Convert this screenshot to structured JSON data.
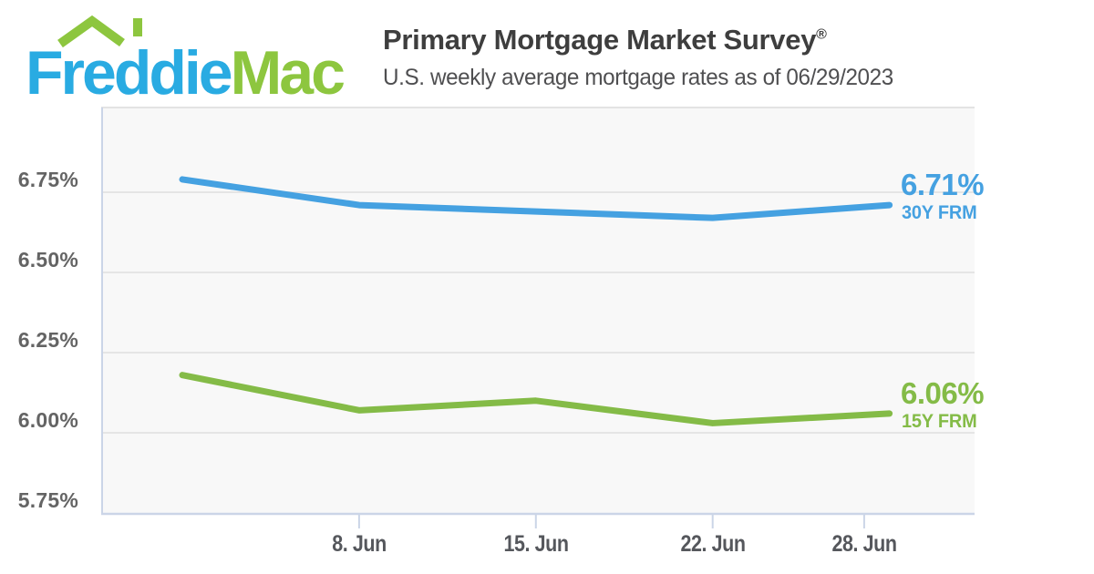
{
  "page": {
    "background": "#FFFFFF"
  },
  "logo": {
    "word1": "Freddie",
    "word2": "Mac",
    "word1_color": "#29ABE2",
    "word2_color": "#8DC63F",
    "roof_color": "#8DC63F",
    "roof_icon": "house-roof-with-chimney"
  },
  "header": {
    "title": "Primary Mortgage Market Survey",
    "registered_mark": "®",
    "subtitle": "U.S. weekly average mortgage rates as of 06/29/2023"
  },
  "chart_data": {
    "type": "line",
    "title": "U.S. weekly average mortgage rates as of 06/29/2023",
    "x_unit": "survey week (June 2023)",
    "x_days": [
      1,
      8,
      15,
      22,
      29
    ],
    "series": [
      {
        "name": "30Y FRM",
        "color": "#45A1E1",
        "values": [
          6.79,
          6.71,
          6.69,
          6.67,
          6.71
        ],
        "end_value_label": "6.71%"
      },
      {
        "name": "15Y FRM",
        "color": "#84BB47",
        "values": [
          6.18,
          6.07,
          6.1,
          6.03,
          6.06
        ],
        "end_value_label": "6.06%"
      }
    ],
    "y_ticks": [
      {
        "value": 6.75,
        "label": "6.75%"
      },
      {
        "value": 6.5,
        "label": "6.50%"
      },
      {
        "value": 6.25,
        "label": "6.25%"
      },
      {
        "value": 6.0,
        "label": "6.00%"
      },
      {
        "value": 5.75,
        "label": "5.75%"
      }
    ],
    "x_ticks": [
      {
        "day": 8,
        "label": "8. Jun"
      },
      {
        "day": 15,
        "label": "15. Jun"
      },
      {
        "day": 22,
        "label": "22. Jun"
      },
      {
        "day": 28,
        "label": "28. Jun"
      }
    ],
    "ylim": [
      5.75,
      7.01
    ],
    "grid": "horizontal",
    "legend_position": "end-of-line-labels",
    "plot_bg": "#F8F8F8",
    "grid_color": "#E5E5E5",
    "top_border_color": "#E3E3E3",
    "axis_color": "#CBD5E7",
    "y_label_color": "#646464",
    "x_label_color": "#55575C"
  }
}
